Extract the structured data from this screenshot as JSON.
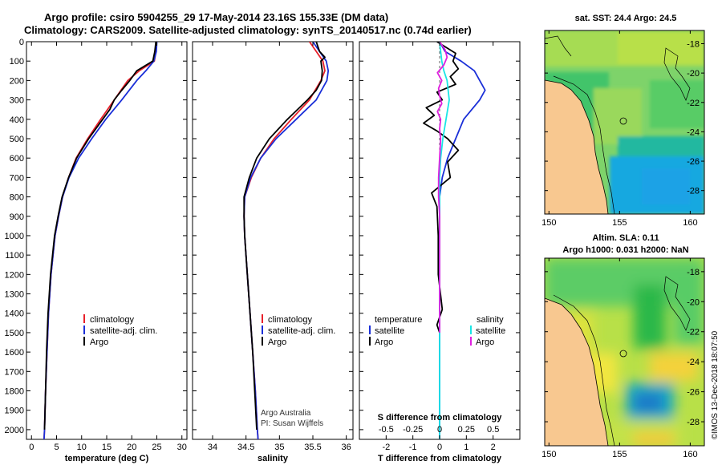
{
  "header": {
    "line1": "Argo profile: csiro 5904255_29 17-May-2014 23.16S 155.33E (DM data)",
    "line2": "Climatology: CARS2009. Satellite-adjusted climatology: synTS_20140517.nc (0.74d earlier)"
  },
  "colors": {
    "climatology": "#e8202a",
    "satellite": "#1a2fd8",
    "argo": "#000000",
    "sat_s": "#19e6e6",
    "argo_s": "#e020e0",
    "land": "#f8c890"
  },
  "depth_axis": {
    "ticks": [
      0,
      100,
      200,
      300,
      400,
      500,
      600,
      700,
      800,
      900,
      1000,
      1100,
      1200,
      1300,
      1400,
      1500,
      1600,
      1700,
      1800,
      1900,
      2000
    ],
    "labels": [
      "0",
      "100",
      "200",
      "300",
      "400",
      "500",
      "600",
      "700",
      "800",
      "900",
      "1000",
      "1100",
      "1200",
      "1300",
      "1400",
      "1500",
      "1600",
      "1700",
      "1800",
      "1900",
      "2000"
    ]
  },
  "chart_data": [
    {
      "type": "line",
      "title": "",
      "xlabel": "temperature (deg C)",
      "ylabel": "depth",
      "xlim": [
        -1,
        31
      ],
      "ylim": [
        2050,
        0
      ],
      "xticks": [
        "0",
        "5",
        "10",
        "15",
        "20",
        "25",
        "30"
      ],
      "legend": [
        "climatology",
        "satellite-adj. clim.",
        "Argo"
      ],
      "series": [
        {
          "name": "climatology",
          "depth": [
            0,
            50,
            100,
            150,
            200,
            300,
            400,
            500,
            600,
            700,
            800,
            900,
            1000,
            1200,
            1400,
            1600,
            1800,
            2000,
            2050
          ],
          "values": [
            24.9,
            24.8,
            24.5,
            21.5,
            19.2,
            16.5,
            13.8,
            11.2,
            8.9,
            7.4,
            6.2,
            5.4,
            4.7,
            3.9,
            3.4,
            3.1,
            2.8,
            2.6,
            2.5
          ]
        },
        {
          "name": "satellite-adj. clim.",
          "depth": [
            0,
            50,
            100,
            150,
            200,
            300,
            400,
            500,
            600,
            700,
            800,
            900,
            1000,
            1200,
            1400,
            1600,
            1800,
            2000,
            2050
          ],
          "values": [
            25.0,
            24.9,
            24.4,
            22.8,
            21.0,
            18.0,
            14.8,
            12.0,
            9.4,
            7.5,
            6.2,
            5.4,
            4.7,
            3.9,
            3.4,
            3.1,
            2.8,
            2.6,
            2.5
          ]
        },
        {
          "name": "Argo",
          "depth": [
            0,
            50,
            100,
            150,
            200,
            250,
            300,
            350,
            400,
            500,
            600,
            700,
            800,
            900,
            1000,
            1200,
            1400,
            1600,
            1800,
            2000
          ],
          "values": [
            24.8,
            24.6,
            24.2,
            21.0,
            19.6,
            18.0,
            16.5,
            15.6,
            14.2,
            11.4,
            9.0,
            7.4,
            6.1,
            5.3,
            4.6,
            3.8,
            3.3,
            3.0,
            2.8,
            2.6
          ]
        }
      ]
    },
    {
      "type": "line",
      "title": "",
      "xlabel": "salinity",
      "ylabel": "depth",
      "xlim": [
        33.7,
        36.1
      ],
      "ylim": [
        2050,
        0
      ],
      "xticks": [
        "34",
        "34.5",
        "35",
        "35.5",
        "36"
      ],
      "legend": [
        "climatology",
        "satellite-adj. clim.",
        "Argo"
      ],
      "notes": [
        "Argo Australia",
        "PI: Susan Wijffels"
      ],
      "series": [
        {
          "name": "climatology",
          "depth": [
            0,
            50,
            100,
            150,
            200,
            300,
            400,
            500,
            600,
            700,
            800,
            900,
            1000,
            1200,
            1400,
            1600,
            1800,
            2000,
            2050
          ],
          "values": [
            35.45,
            35.55,
            35.65,
            35.68,
            35.62,
            35.45,
            35.18,
            34.92,
            34.72,
            34.58,
            34.48,
            34.47,
            34.48,
            34.52,
            34.56,
            34.6,
            34.64,
            34.67,
            34.68
          ]
        },
        {
          "name": "satellite-adj. clim.",
          "depth": [
            0,
            50,
            100,
            150,
            200,
            300,
            400,
            500,
            600,
            700,
            800,
            900,
            1000,
            1200,
            1400,
            1600,
            1800,
            2000,
            2050
          ],
          "values": [
            35.5,
            35.6,
            35.7,
            35.73,
            35.71,
            35.55,
            35.25,
            34.95,
            34.72,
            34.57,
            34.48,
            34.47,
            34.48,
            34.52,
            34.56,
            34.6,
            34.64,
            34.67,
            34.68
          ]
        },
        {
          "name": "Argo",
          "depth": [
            0,
            50,
            80,
            100,
            150,
            200,
            250,
            300,
            400,
            500,
            600,
            700,
            800,
            900,
            1000,
            1200,
            1400,
            1600,
            1800,
            2000
          ],
          "values": [
            35.55,
            35.6,
            35.68,
            35.62,
            35.64,
            35.63,
            35.55,
            35.42,
            35.12,
            34.85,
            34.66,
            34.55,
            34.47,
            34.47,
            34.48,
            34.52,
            34.56,
            34.6,
            34.63,
            34.66
          ]
        }
      ]
    },
    {
      "type": "line",
      "title": "",
      "xlabel": "T difference from climatology",
      "ylabel": "depth",
      "xlim": [
        -3,
        3
      ],
      "ylim": [
        2050,
        0
      ],
      "xticks": [
        "-2",
        "-1",
        "0",
        "1",
        "2"
      ],
      "secondary_xlabel": "S difference from climatology",
      "secondary_xticks": [
        "-0.5",
        "-0.25",
        "0",
        "0.25",
        "0.5"
      ],
      "legend_left_title": "temperature",
      "legend_right_title": "salinity",
      "legend_left": [
        "satellite",
        "Argo"
      ],
      "legend_right": [
        "satellite",
        "Argo"
      ],
      "series": [
        {
          "name": "temperature satellite",
          "depth": [
            0,
            50,
            100,
            150,
            200,
            250,
            300,
            400,
            500,
            600,
            700,
            800,
            900,
            1000,
            1200,
            1400,
            1600,
            1800,
            2000,
            2050
          ],
          "values": [
            0.0,
            0.2,
            0.8,
            1.3,
            1.5,
            1.7,
            1.5,
            0.9,
            0.6,
            0.3,
            0.1,
            0.0,
            0.0,
            0.0,
            0.0,
            0.0,
            0.0,
            0.0,
            0.0,
            0.0
          ]
        },
        {
          "name": "temperature Argo",
          "depth": [
            0,
            60,
            100,
            140,
            180,
            220,
            260,
            300,
            340,
            380,
            420,
            460,
            500,
            560,
            620,
            700,
            780,
            850,
            1000,
            1200,
            1380,
            1460,
            1500
          ],
          "values": [
            -0.1,
            0.6,
            0.5,
            0.7,
            0.4,
            0.6,
            -0.1,
            0.1,
            -0.5,
            -0.2,
            -0.6,
            -0.1,
            0.3,
            0.7,
            0.3,
            0.4,
            -0.3,
            -0.1,
            -0.05,
            -0.05,
            0.1,
            -0.1,
            0.0
          ]
        },
        {
          "name": "salinity satellite",
          "depth": [
            0,
            50,
            100,
            150,
            200,
            300,
            400,
            500,
            600,
            700,
            800,
            900,
            1000,
            1200,
            1400,
            1600,
            1800,
            2000,
            2050
          ],
          "values": [
            0.0,
            0.01,
            0.02,
            0.04,
            0.07,
            0.09,
            0.06,
            0.03,
            0.01,
            0.0,
            0.0,
            0.0,
            0.0,
            0.0,
            0.0,
            0.0,
            0.0,
            0.0,
            0.0
          ]
        },
        {
          "name": "salinity Argo",
          "depth": [
            0,
            40,
            80,
            120,
            160,
            200,
            240,
            280,
            320,
            360,
            400,
            450,
            500,
            600,
            700,
            800,
            900,
            1000,
            1200,
            1400,
            1500
          ],
          "values": [
            0.0,
            0.05,
            0.07,
            0.04,
            -0.02,
            0.02,
            -0.01,
            0.0,
            0.02,
            -0.02,
            0.01,
            0.0,
            0.01,
            0.0,
            -0.01,
            -0.01,
            0.0,
            0.0,
            0.0,
            0.0,
            0.0
          ]
        }
      ]
    },
    {
      "type": "heatmap",
      "title": "sat. SST: 24.4 Argo: 24.5",
      "xticks": [
        "150",
        "155",
        "160"
      ],
      "yticks": [
        "-18",
        "-20",
        "-22",
        "-24",
        "-26",
        "-28"
      ]
    },
    {
      "type": "heatmap",
      "title": "Altim. SLA: 0.11",
      "subtitle": "Argo h1000: 0.031 h2000: NaN",
      "xticks": [
        "150",
        "155",
        "160"
      ],
      "yticks": [
        "-18",
        "-20",
        "-22",
        "-24",
        "-26",
        "-28"
      ]
    }
  ],
  "footer": {
    "credit": "©IMOS 13-Dec-2018 18:07:50"
  }
}
